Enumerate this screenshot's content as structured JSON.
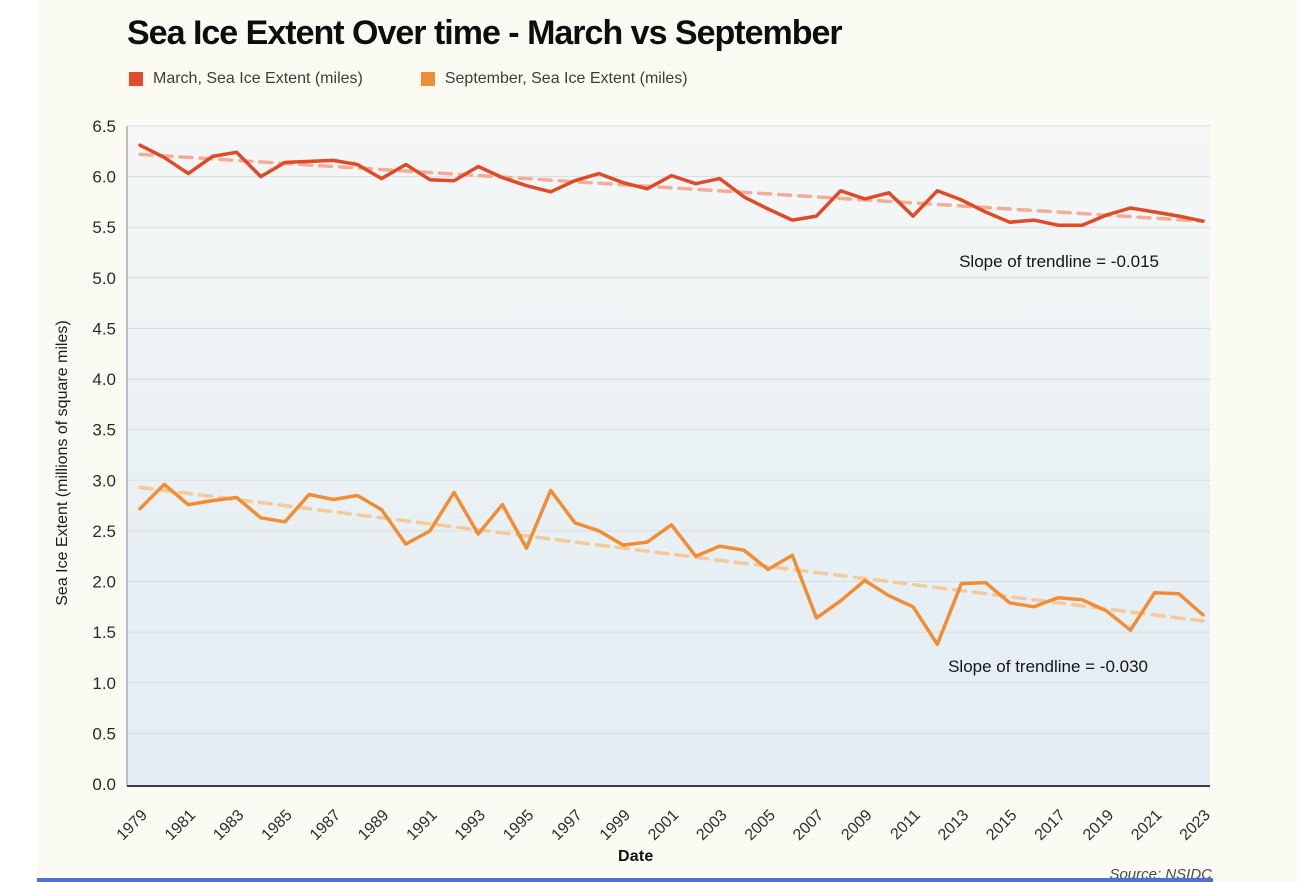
{
  "header": {
    "title": "Sea Ice Extent Over time - March vs September"
  },
  "chart_data": {
    "type": "line",
    "title": "Sea Ice Extent Over time - March vs September",
    "xlabel": "Date",
    "ylabel": "Sea Ice Extent (millions of square miles)",
    "source": "Source: NSIDC",
    "ylim": [
      0,
      6.5
    ],
    "yticks": [
      0.0,
      0.5,
      1.0,
      1.5,
      2.0,
      2.5,
      3.0,
      3.5,
      4.0,
      4.5,
      5.0,
      5.5,
      6.0,
      6.5
    ],
    "x": [
      1979,
      1980,
      1981,
      1982,
      1983,
      1984,
      1985,
      1986,
      1987,
      1988,
      1989,
      1990,
      1991,
      1992,
      1993,
      1994,
      1995,
      1996,
      1997,
      1998,
      1999,
      2000,
      2001,
      2002,
      2003,
      2004,
      2005,
      2006,
      2007,
      2008,
      2009,
      2010,
      2011,
      2012,
      2013,
      2014,
      2015,
      2016,
      2017,
      2018,
      2019,
      2020,
      2021,
      2022,
      2023
    ],
    "x_tick_years": [
      1979,
      1981,
      1983,
      1985,
      1987,
      1989,
      1991,
      1993,
      1995,
      1997,
      1999,
      2001,
      2003,
      2005,
      2007,
      2009,
      2011,
      2013,
      2015,
      2017,
      2019,
      2021,
      2023
    ],
    "grid": true,
    "legend_position": "top-left",
    "series": [
      {
        "name": "March, Sea Ice Extent (miles)",
        "color": "#e04a26",
        "values": [
          6.31,
          6.19,
          6.03,
          6.2,
          6.24,
          6.0,
          6.14,
          6.15,
          6.16,
          6.12,
          5.98,
          6.12,
          5.97,
          5.96,
          6.1,
          5.99,
          5.91,
          5.85,
          5.96,
          6.03,
          5.94,
          5.88,
          6.01,
          5.93,
          5.98,
          5.8,
          5.68,
          5.57,
          5.61,
          5.86,
          5.78,
          5.84,
          5.61,
          5.86,
          5.77,
          5.65,
          5.55,
          5.57,
          5.52,
          5.52,
          5.62,
          5.69,
          5.65,
          5.61,
          5.56
        ],
        "trend": {
          "start": 6.22,
          "end": 5.56,
          "color": "#f3ac97",
          "label": "Slope of trendline = -0.015"
        }
      },
      {
        "name": "September, Sea Ice Extent (miles)",
        "color": "#f08d35",
        "values": [
          2.72,
          2.96,
          2.76,
          2.8,
          2.83,
          2.63,
          2.59,
          2.86,
          2.81,
          2.85,
          2.71,
          2.37,
          2.5,
          2.88,
          2.47,
          2.76,
          2.33,
          2.9,
          2.58,
          2.5,
          2.36,
          2.39,
          2.56,
          2.25,
          2.35,
          2.31,
          2.12,
          2.26,
          1.64,
          1.81,
          2.01,
          1.86,
          1.75,
          1.38,
          1.98,
          1.99,
          1.79,
          1.75,
          1.84,
          1.82,
          1.71,
          1.52,
          1.89,
          1.88,
          1.67
        ],
        "trend": {
          "start": 2.93,
          "end": 1.61,
          "color": "#f4c99c",
          "label": "Slope of trendline = -0.030"
        }
      }
    ]
  }
}
